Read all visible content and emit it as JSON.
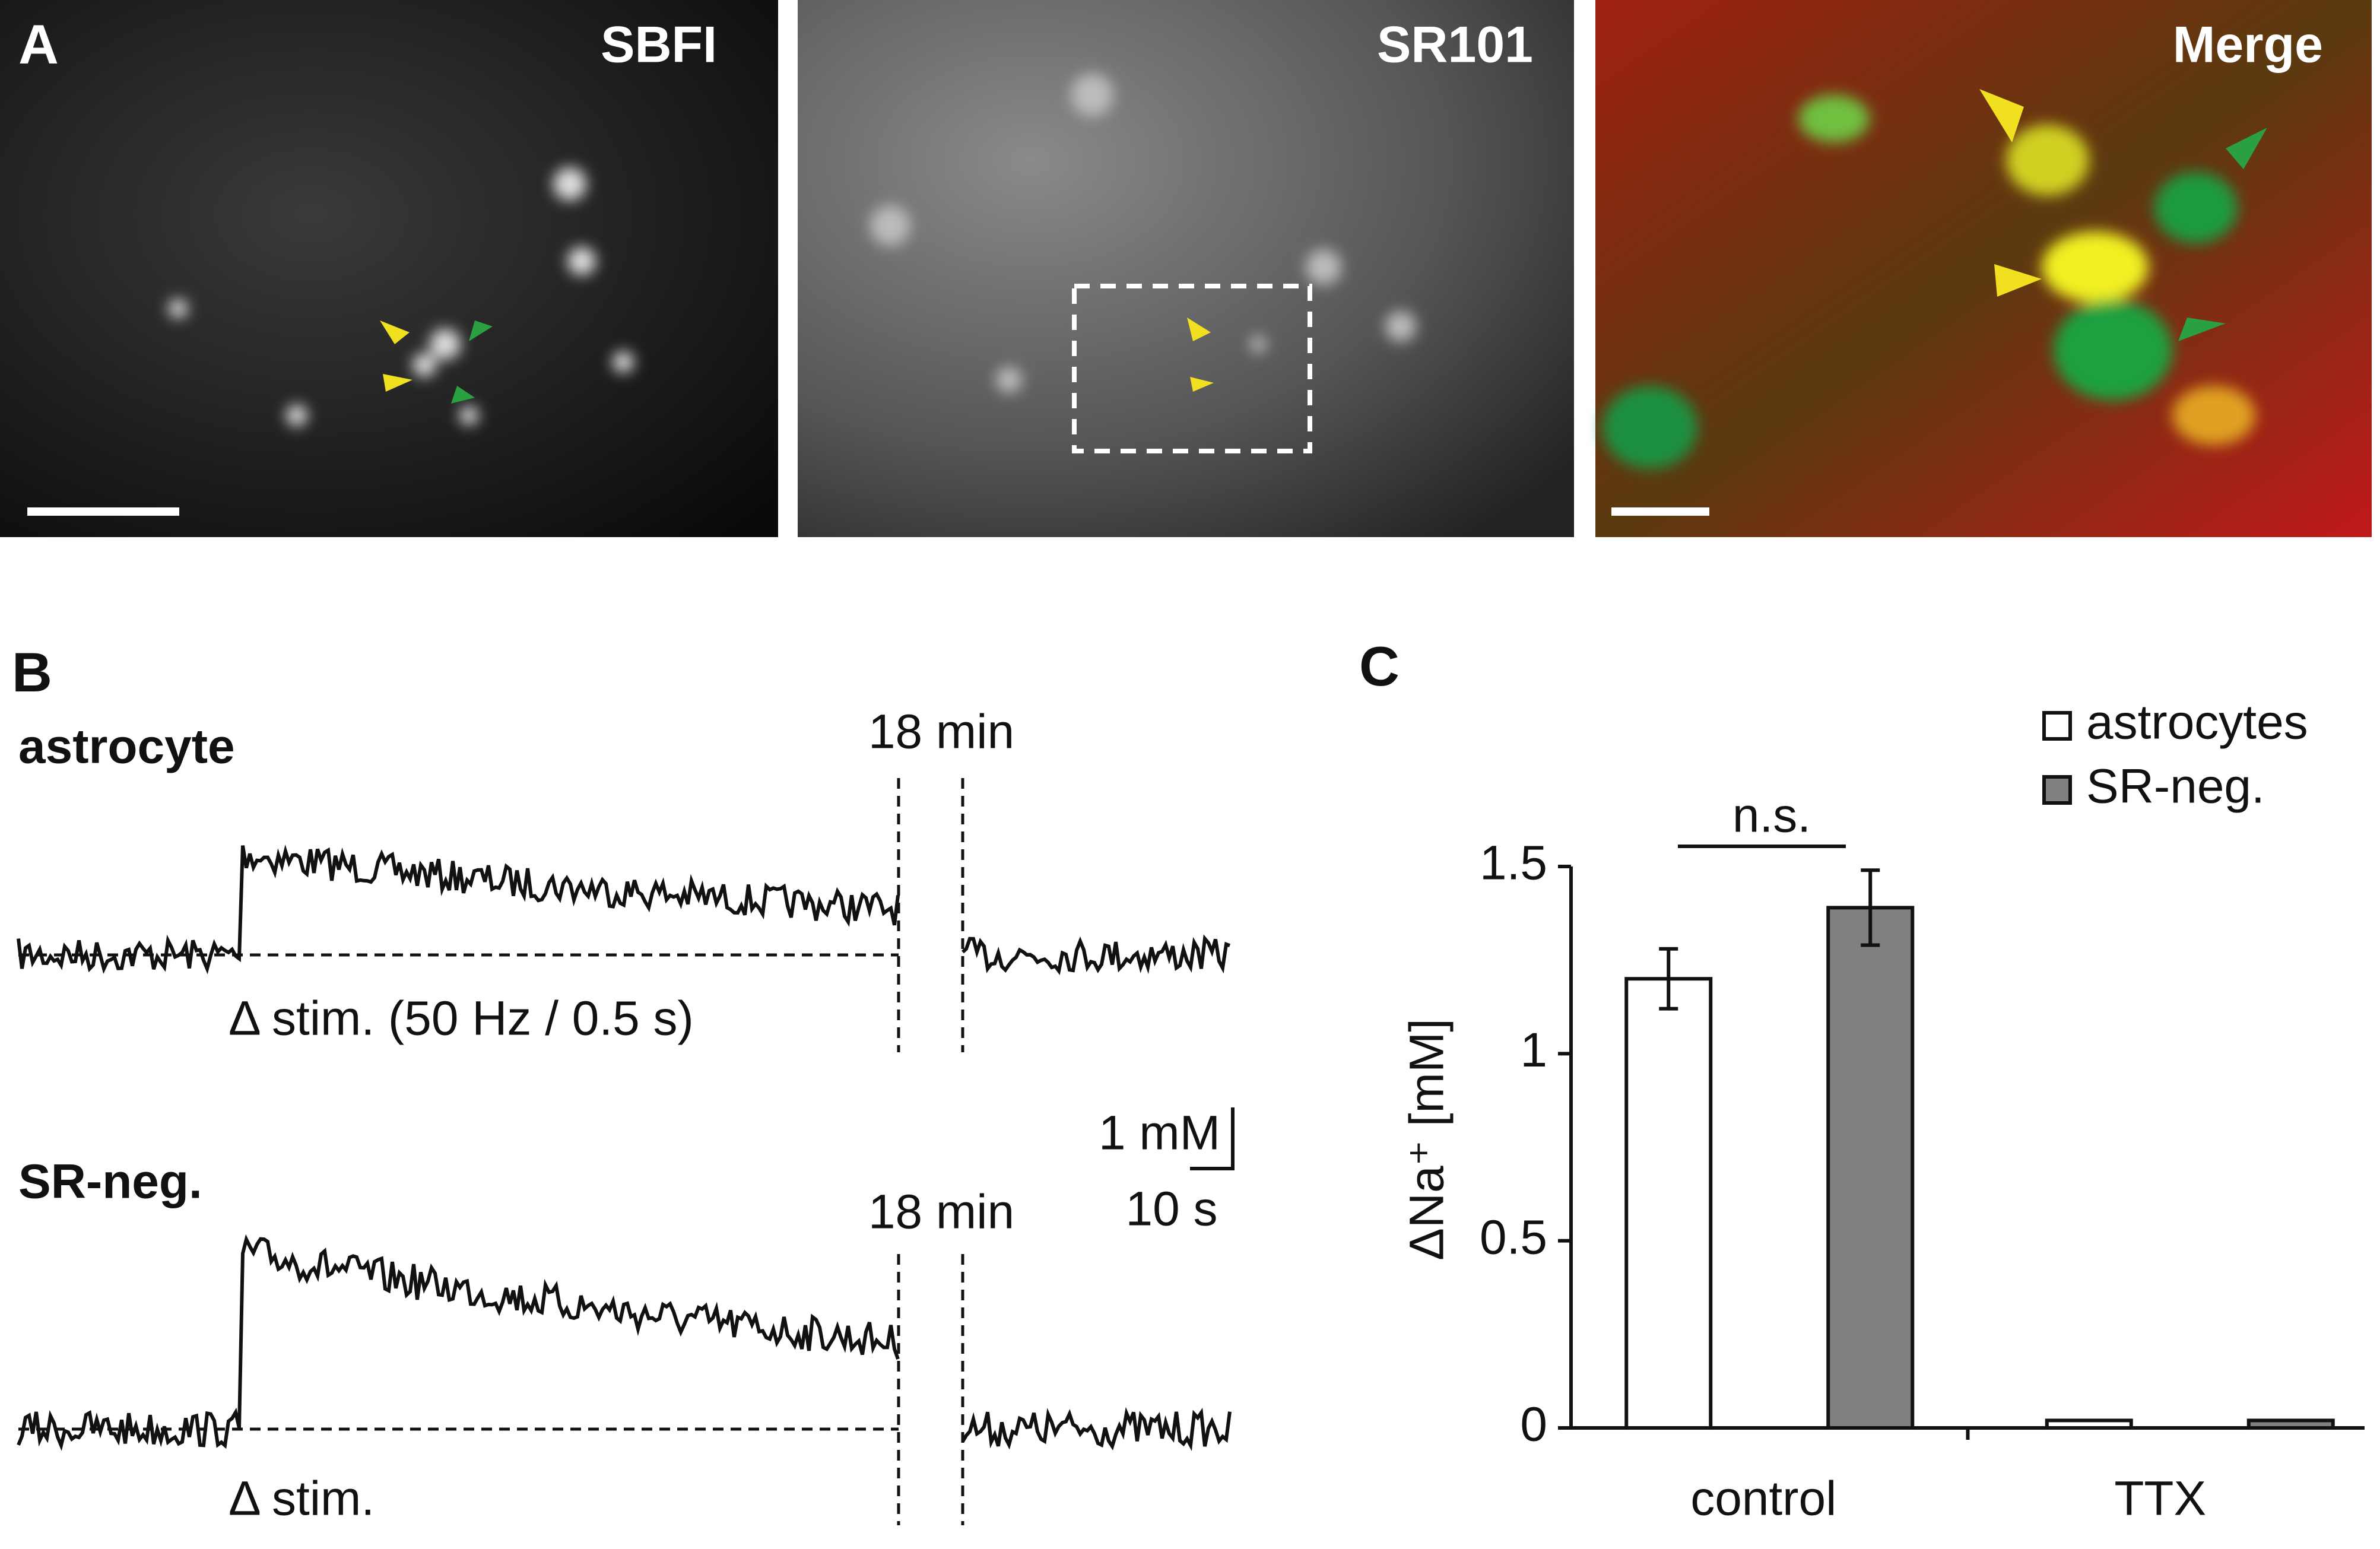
{
  "panel_a": {
    "label": "A",
    "images": [
      "SBFI",
      "SR101",
      "Merge"
    ]
  },
  "panel_b": {
    "label": "B",
    "traces": [
      {
        "name": "astrocyte",
        "gap": "18 min",
        "stim": "Δ stim. (50 Hz / 0.5 s)"
      },
      {
        "name": "SR-neg.",
        "gap": "18 min",
        "stim": "Δ stim."
      }
    ],
    "scale_y": "1 mM",
    "scale_x": "10 s"
  },
  "panel_c": {
    "label": "C"
  },
  "chart_data": {
    "type": "bar",
    "categories": [
      "control",
      "TTX"
    ],
    "series": [
      {
        "name": "astrocytes",
        "color": "#ffffff",
        "values": [
          1.2,
          0.02
        ],
        "errors": [
          0.08,
          null
        ]
      },
      {
        "name": "SR-neg.",
        "color": "#808080",
        "values": [
          1.39,
          0.02
        ],
        "errors": [
          0.1,
          null
        ]
      }
    ],
    "ylabel": "ΔNa⁺ [mM]",
    "annotation": "n.s.",
    "ylim": [
      0,
      1.5
    ],
    "yticks": [
      0,
      0.5,
      1,
      1.5
    ]
  }
}
